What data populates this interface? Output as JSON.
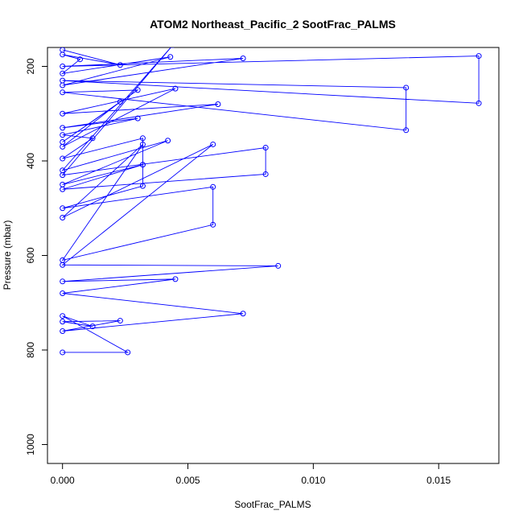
{
  "chart_data": {
    "type": "line",
    "title": "ATOM2 Northeast_Pacific_2 SootFrac_PALMS",
    "xlabel": "SootFrac_PALMS",
    "ylabel": "Pressure (mbar)",
    "xlim": [
      -0.0006,
      0.0174
    ],
    "ylim": [
      1040,
      160
    ],
    "y_reversed": true,
    "grid": false,
    "x_ticks": [
      0.0,
      0.005,
      0.01,
      0.015
    ],
    "x_tick_labels": [
      "0.000",
      "0.005",
      "0.010",
      "0.015"
    ],
    "y_ticks": [
      200,
      400,
      600,
      800,
      1000
    ],
    "y_tick_labels": [
      "200",
      "400",
      "600",
      "800",
      "1000"
    ],
    "series_color": "#0000ff",
    "series": [
      {
        "x": [
          0,
          0.0023,
          0,
          0.0007,
          0,
          0.0043,
          0,
          0.0072,
          0,
          0.0166,
          0.0166,
          0,
          0.0137,
          0.0137,
          0,
          0.003,
          0,
          0.0023,
          0,
          0.0045,
          0,
          0.0062,
          0,
          0.003,
          0,
          0.0012,
          0,
          0.0032,
          0.0032,
          0,
          0.0042,
          0,
          0.0044,
          0,
          0.0081,
          0.0081,
          0,
          0.0032,
          0.0032,
          0,
          0.006,
          0.006,
          0,
          0.0032,
          0,
          0.006,
          0,
          0.0086,
          0,
          0.0045,
          0,
          0.0072,
          0,
          0.0023,
          0,
          0.0012,
          0,
          0.0026,
          0
        ],
        "y": [
          165,
          197,
          175,
          185,
          215,
          180,
          240,
          183,
          200,
          178,
          278,
          230,
          245,
          335,
          255,
          250,
          360,
          275,
          370,
          247,
          300,
          280,
          330,
          310,
          345,
          352,
          395,
          352,
          408,
          450,
          357,
          420,
          155,
          430,
          372,
          428,
          460,
          408,
          453,
          500,
          455,
          535,
          610,
          365,
          520,
          365,
          620,
          622,
          655,
          650,
          680,
          723,
          760,
          738,
          740,
          750,
          728,
          805,
          805
        ]
      }
    ]
  }
}
